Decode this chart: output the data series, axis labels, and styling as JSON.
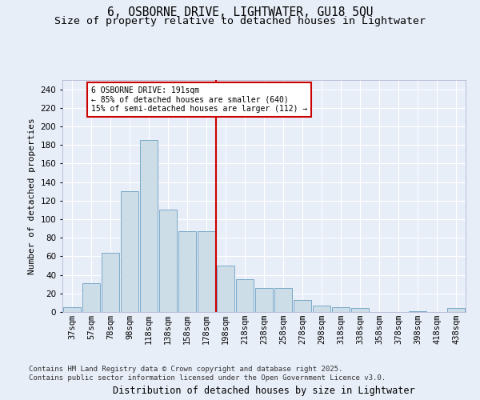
{
  "title1": "6, OSBORNE DRIVE, LIGHTWATER, GU18 5QU",
  "title2": "Size of property relative to detached houses in Lightwater",
  "xlabel": "Distribution of detached houses by size in Lightwater",
  "ylabel": "Number of detached properties",
  "bar_labels": [
    "37sqm",
    "57sqm",
    "78sqm",
    "98sqm",
    "118sqm",
    "138sqm",
    "158sqm",
    "178sqm",
    "198sqm",
    "218sqm",
    "238sqm",
    "258sqm",
    "278sqm",
    "298sqm",
    "318sqm",
    "338sqm",
    "358sqm",
    "378sqm",
    "398sqm",
    "418sqm",
    "438sqm"
  ],
  "bar_values": [
    5,
    31,
    64,
    130,
    185,
    110,
    87,
    87,
    50,
    35,
    26,
    26,
    13,
    7,
    5,
    4,
    0,
    0,
    1,
    0,
    4
  ],
  "bar_color": "#ccdde8",
  "bar_edge_color": "#7aaac8",
  "vline_color": "#cc0000",
  "annotation_text": "6 OSBORNE DRIVE: 191sqm\n← 85% of detached houses are smaller (640)\n15% of semi-detached houses are larger (112) →",
  "annotation_box_color": "#cc0000",
  "bg_color": "#e8eef8",
  "plot_bg_color": "#e8eef8",
  "grid_color": "#ffffff",
  "footer_text": "Contains HM Land Registry data © Crown copyright and database right 2025.\nContains public sector information licensed under the Open Government Licence v3.0.",
  "ylim": [
    0,
    250
  ],
  "yticks": [
    0,
    20,
    40,
    60,
    80,
    100,
    120,
    140,
    160,
    180,
    200,
    220,
    240
  ],
  "title1_fontsize": 10.5,
  "title2_fontsize": 9.5,
  "xlabel_fontsize": 8.5,
  "ylabel_fontsize": 8,
  "tick_fontsize": 7.5,
  "footer_fontsize": 6.5
}
